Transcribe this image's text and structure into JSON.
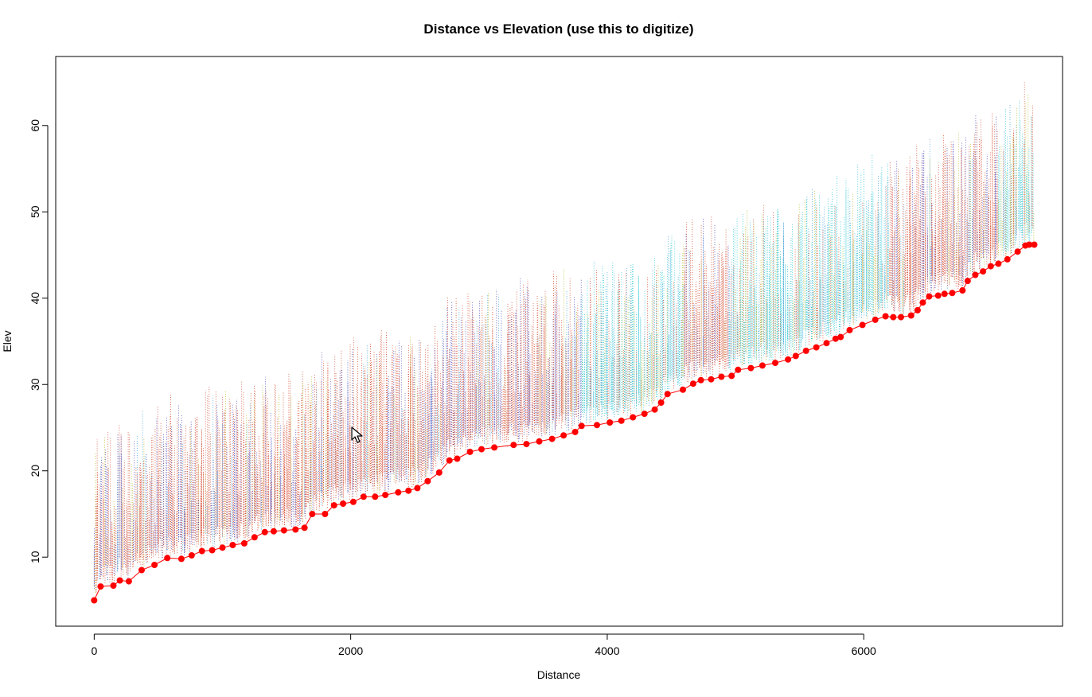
{
  "chart_data": {
    "type": "scatter",
    "title": "Distance vs Elevation (use this to digitize)",
    "xlabel": "Distance",
    "ylabel": "Elev",
    "xlim": [
      -300,
      7550
    ],
    "ylim": [
      2,
      68
    ],
    "x_ticks": [
      0,
      2000,
      4000,
      6000
    ],
    "y_ticks": [
      10,
      20,
      30,
      40,
      50,
      60
    ],
    "grid": false,
    "legend": "none",
    "point_color": "#ff0000",
    "line_color": "#ff0000",
    "background_cloud_colors": [
      "#cc2200",
      "#2222aa",
      "#00bbcc",
      "#1f8fd0",
      "#aaaa00",
      "#44cc44"
    ],
    "series": [
      {
        "x": [
          0,
          50,
          150,
          200,
          270,
          370,
          470,
          570,
          680,
          760,
          840,
          920,
          1000,
          1080,
          1170,
          1250,
          1330,
          1400,
          1480,
          1570,
          1640,
          1700,
          1800,
          1870,
          1940,
          2020,
          2100,
          2190,
          2270,
          2370,
          2450,
          2520,
          2600,
          2690,
          2770,
          2830,
          2930,
          3020,
          3120,
          3270,
          3370,
          3470,
          3570,
          3660,
          3750,
          3800,
          3920,
          4020,
          4110,
          4200,
          4290,
          4370,
          4420,
          4470,
          4590,
          4670,
          4730,
          4810,
          4890,
          4970,
          5020,
          5120,
          5210,
          5310,
          5410,
          5470,
          5550,
          5630,
          5710,
          5780,
          5820,
          5890,
          5990,
          6090,
          6170,
          6230,
          6290,
          6370,
          6420,
          6460,
          6510,
          6580,
          6630,
          6690,
          6770,
          6810,
          6870,
          6930,
          6990,
          7050,
          7120,
          7200,
          7260,
          7290,
          7330
        ],
        "y": [
          5.0,
          6.6,
          6.7,
          7.3,
          7.2,
          8.5,
          9.1,
          9.9,
          9.8,
          10.2,
          10.7,
          10.8,
          11.1,
          11.4,
          11.6,
          12.3,
          12.9,
          13.0,
          13.1,
          13.2,
          13.4,
          15.0,
          15.0,
          16.0,
          16.2,
          16.4,
          17.0,
          17.0,
          17.2,
          17.5,
          17.7,
          18.0,
          18.8,
          19.8,
          21.2,
          21.4,
          22.2,
          22.5,
          22.7,
          23.0,
          23.1,
          23.4,
          23.7,
          24.1,
          24.5,
          25.2,
          25.3,
          25.6,
          25.8,
          26.2,
          26.6,
          27.1,
          27.9,
          28.9,
          29.4,
          30.1,
          30.5,
          30.6,
          30.9,
          31.0,
          31.7,
          31.9,
          32.2,
          32.5,
          32.9,
          33.3,
          33.9,
          34.3,
          34.8,
          35.3,
          35.5,
          36.3,
          36.9,
          37.5,
          37.9,
          37.8,
          37.8,
          38.0,
          38.6,
          39.5,
          40.2,
          40.3,
          40.5,
          40.6,
          40.9,
          42.0,
          42.7,
          43.1,
          43.7,
          44.0,
          44.5,
          45.4,
          46.1,
          46.2,
          46.2
        ]
      }
    ]
  }
}
